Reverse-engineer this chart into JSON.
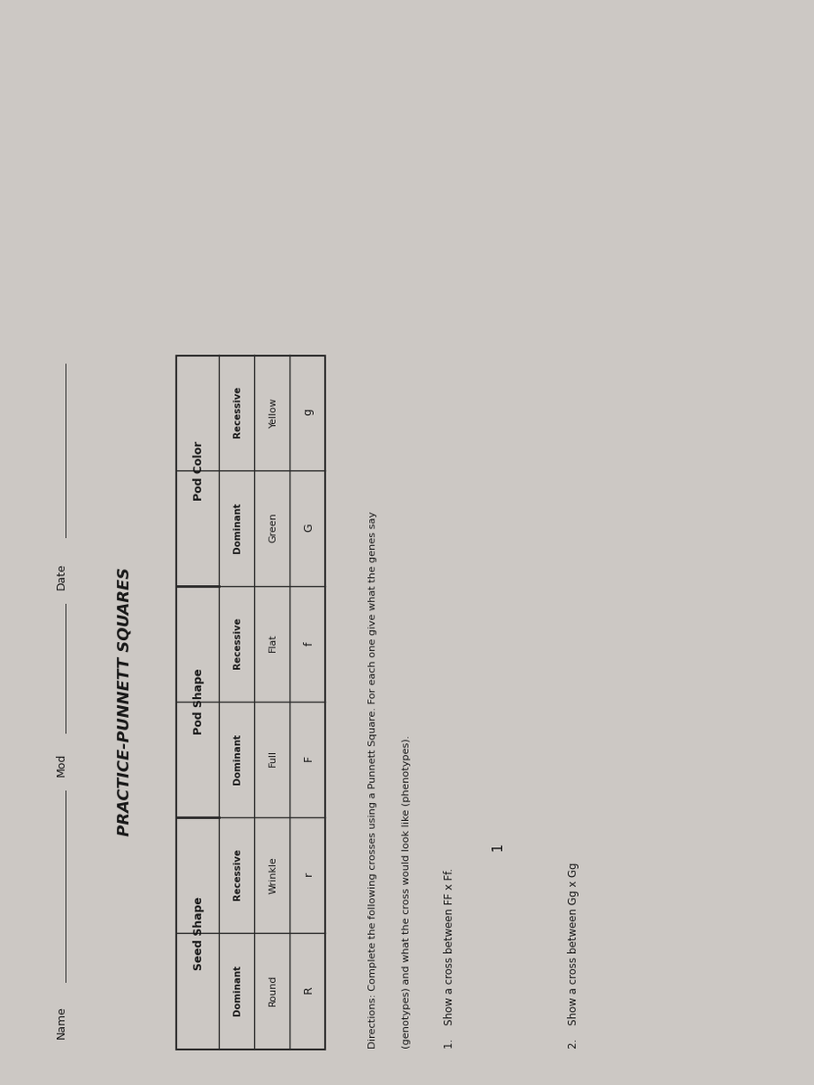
{
  "bg_color": "#ccc8c4",
  "title": "PRACTICE-PUNNETT SQUARES",
  "header_line_labels": [
    "Name",
    "Mod",
    "Date"
  ],
  "table_headers": [
    "Seed Shape",
    "Pod Shape",
    "Pod Color"
  ],
  "table_row1": [
    "Dominant",
    "Recessive",
    "Dominant",
    "Recessive",
    "Dominant",
    "Recessive"
  ],
  "table_row2": [
    "Round",
    "Wrinkle",
    "Full",
    "Flat",
    "Green",
    "Yellow"
  ],
  "table_row3": [
    "R",
    "r",
    "F",
    "f",
    "G",
    "g"
  ],
  "directions_line1": "Directions: Complete the following crosses using a Punnett Square. For each one give what the genes say",
  "directions_line2": "(genotypes) and what the cross would look like (phenotypes).",
  "q1": "1.    Show a cross between FF x Ff.",
  "q2": "2.    Show a cross between Gg x Gg",
  "q1_num": "1",
  "font_color": "#1a1a1a",
  "table_border_color": "#2a2a2a",
  "line_color": "#444444",
  "fig_width": 9.0,
  "fig_height": 12.0,
  "dpi": 100
}
